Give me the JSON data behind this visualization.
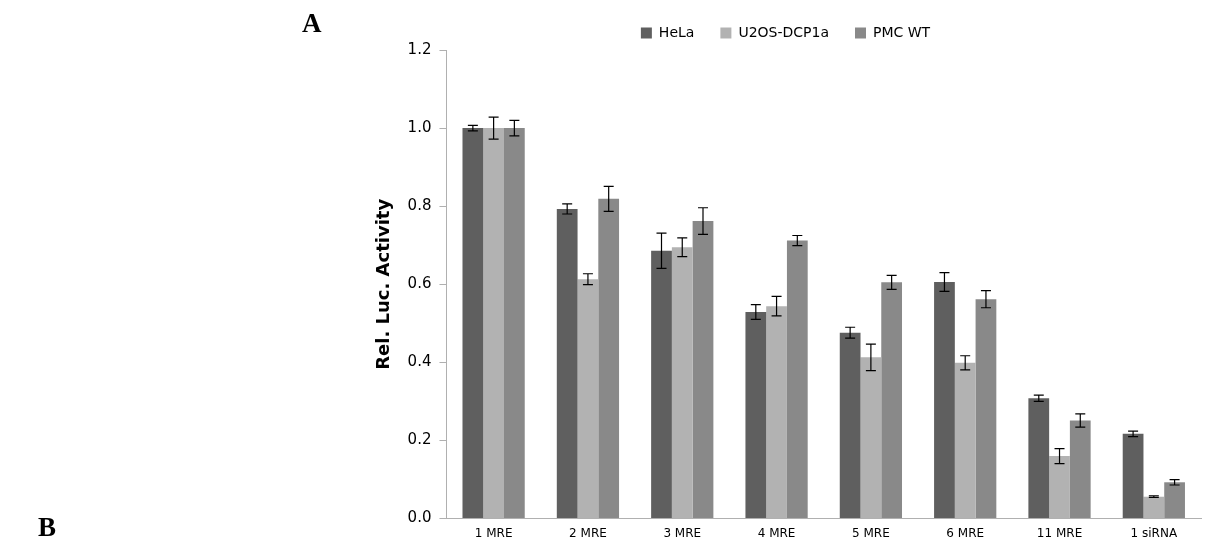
{
  "chart_data": {
    "type": "bar",
    "categories": [
      "1 MRE",
      "2 MRE",
      "3 MRE",
      "4 MRE",
      "5 MRE",
      "6 MRE",
      "11 MRE",
      "1 siRNA"
    ],
    "series": [
      {
        "name": "HeLa",
        "color": "#5f5f5f",
        "values": [
          1.0,
          0.793,
          0.686,
          0.529,
          0.476,
          0.606,
          0.308,
          0.217
        ],
        "errors": [
          0.007,
          0.013,
          0.045,
          0.019,
          0.014,
          0.024,
          0.008,
          0.007
        ]
      },
      {
        "name": "U2OS-DCP1a",
        "color": "#b2b2b2",
        "values": [
          1.0,
          0.613,
          0.695,
          0.544,
          0.413,
          0.399,
          0.16,
          0.056
        ],
        "errors": [
          0.028,
          0.014,
          0.024,
          0.025,
          0.034,
          0.018,
          0.019,
          0.002
        ]
      },
      {
        "name": "PMC WT",
        "color": "#898989",
        "values": [
          1.0,
          0.819,
          0.762,
          0.712,
          0.605,
          0.562,
          0.251,
          0.093
        ],
        "errors": [
          0.02,
          0.032,
          0.034,
          0.013,
          0.018,
          0.022,
          0.017,
          0.007
        ]
      }
    ],
    "ylabel": "Rel. Luc. Activity",
    "ylim": [
      0,
      1.2
    ],
    "yticks": [
      {
        "value": 0,
        "label": "0.0"
      },
      {
        "value": 0.2,
        "label": "0.2"
      },
      {
        "value": 0.4,
        "label": "0.4"
      },
      {
        "value": 0.6,
        "label": "0.6"
      },
      {
        "value": 0.8,
        "label": "0.8"
      },
      {
        "value": 1.0,
        "label": "1.0"
      },
      {
        "value": 1.2,
        "label": "1.2"
      }
    ],
    "annotations": [
      "A",
      "B"
    ],
    "legend": "top",
    "grid": false
  }
}
